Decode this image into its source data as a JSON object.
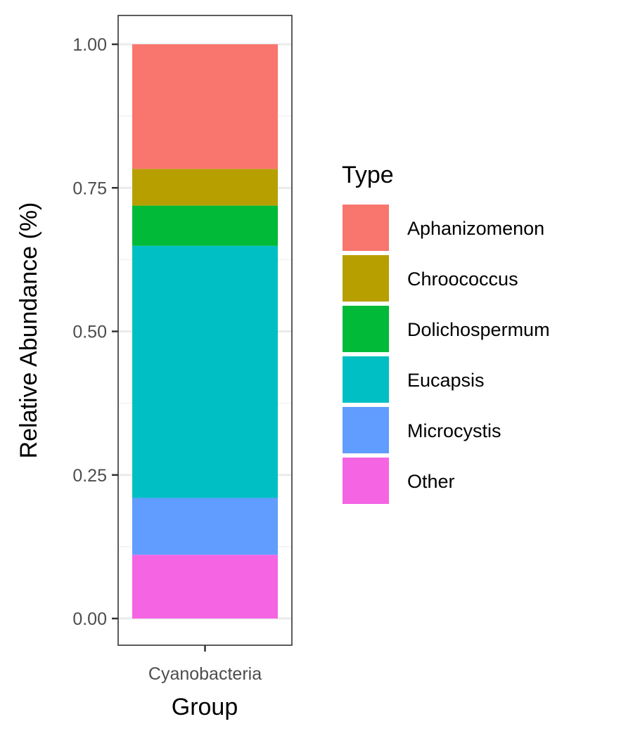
{
  "chart_data": {
    "type": "bar",
    "stacked": true,
    "categories": [
      "Cyanobacteria"
    ],
    "xlabel": "Group",
    "ylabel": "Relative Abundance (%)",
    "ylim": [
      0,
      1
    ],
    "yticks": [
      "0.00",
      "0.25",
      "0.50",
      "0.75",
      "1.00"
    ],
    "grid": true,
    "legend": {
      "title": "Type",
      "position": "right"
    },
    "series": [
      {
        "name": "Aphanizomenon",
        "color": "#F8766D",
        "values": [
          0.217
        ]
      },
      {
        "name": "Chroococcus",
        "color": "#B79F00",
        "values": [
          0.064
        ]
      },
      {
        "name": "Dolichospermum",
        "color": "#00BA38",
        "values": [
          0.07
        ]
      },
      {
        "name": "Eucapsis",
        "color": "#00BFC4",
        "values": [
          0.439
        ]
      },
      {
        "name": "Microcystis",
        "color": "#619CFF",
        "values": [
          0.099
        ]
      },
      {
        "name": "Other",
        "color": "#F564E3",
        "values": [
          0.111
        ]
      }
    ]
  }
}
